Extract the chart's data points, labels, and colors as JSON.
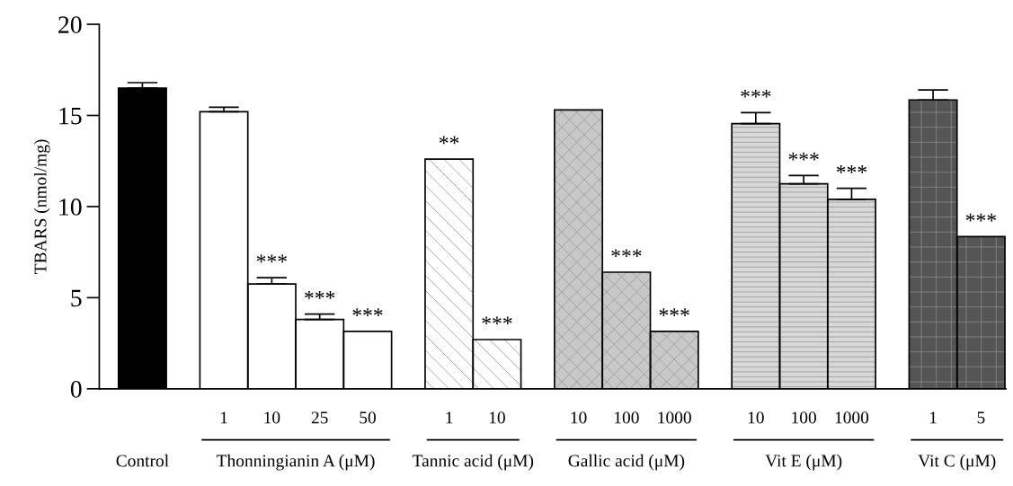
{
  "chart_data": {
    "type": "bar",
    "ylabel": "TBARS (nmol/mg)",
    "categories": [
      null,
      "1",
      "10",
      "25",
      "50",
      "1",
      "10",
      "10",
      "100",
      "1000",
      "10",
      "100",
      "1000",
      "1",
      "5"
    ],
    "annotations": [
      "Control",
      "Thonningianin A (μM)",
      "Tannic acid (μM)",
      "Gallic acid (μM)",
      "Vit E (μM)",
      "Vit C (μM)"
    ],
    "ylim": [
      0,
      20
    ],
    "yticks": [
      0,
      5,
      10,
      15,
      20
    ],
    "grid": false,
    "legend": false,
    "series": [
      {
        "color": "#000000",
        "values": [
          16.5,
          null,
          null,
          null,
          null,
          null,
          null,
          null,
          null,
          null,
          null,
          null,
          null,
          null,
          null
        ],
        "errors": [
          0.3,
          null,
          null,
          null,
          null,
          null,
          null,
          null,
          null,
          null,
          null,
          null,
          null,
          null,
          null
        ],
        "value_labels": [
          null,
          null,
          null,
          null,
          null,
          null,
          null,
          null,
          null,
          null,
          null,
          null,
          null,
          null,
          null
        ]
      },
      {
        "color": "#ffffff",
        "values": [
          null,
          15.2,
          5.75,
          3.8,
          3.15,
          null,
          null,
          null,
          null,
          null,
          null,
          null,
          null,
          null,
          null
        ],
        "errors": [
          null,
          0.25,
          0.35,
          0.3,
          null,
          null,
          null,
          null,
          null,
          null,
          null,
          null,
          null,
          null,
          null
        ],
        "value_labels": [
          null,
          null,
          "***",
          "***",
          "***",
          null,
          null,
          null,
          null,
          null,
          null,
          null,
          null,
          null,
          null
        ]
      },
      {
        "color": "#ffffff",
        "values": [
          null,
          null,
          null,
          null,
          null,
          12.6,
          2.7,
          null,
          null,
          null,
          null,
          null,
          null,
          null,
          null
        ],
        "errors": [
          null,
          null,
          null,
          null,
          null,
          null,
          null,
          null,
          null,
          null,
          null,
          null,
          null,
          null,
          null
        ],
        "value_labels": [
          null,
          null,
          null,
          null,
          null,
          "**",
          "***",
          null,
          null,
          null,
          null,
          null,
          null,
          null,
          null
        ]
      },
      {
        "color": "#c8c8c8",
        "values": [
          null,
          null,
          null,
          null,
          null,
          null,
          null,
          15.3,
          6.4,
          3.15,
          null,
          null,
          null,
          null,
          null
        ],
        "errors": [
          null,
          null,
          null,
          null,
          null,
          null,
          null,
          null,
          null,
          null,
          null,
          null,
          null,
          null,
          null
        ],
        "value_labels": [
          null,
          null,
          null,
          null,
          null,
          null,
          null,
          null,
          "***",
          "***",
          null,
          null,
          null,
          null,
          null
        ]
      },
      {
        "color": "#d8d8d8",
        "values": [
          null,
          null,
          null,
          null,
          null,
          null,
          null,
          null,
          null,
          null,
          14.55,
          11.25,
          10.4,
          null,
          null
        ],
        "errors": [
          null,
          null,
          null,
          null,
          null,
          null,
          null,
          null,
          null,
          null,
          0.6,
          0.45,
          0.6,
          null,
          null
        ],
        "value_labels": [
          null,
          null,
          null,
          null,
          null,
          null,
          null,
          null,
          null,
          null,
          "***",
          "***",
          "***",
          null,
          null
        ]
      },
      {
        "color": "#555555",
        "values": [
          null,
          null,
          null,
          null,
          null,
          null,
          null,
          null,
          null,
          null,
          null,
          null,
          null,
          15.85,
          8.35
        ],
        "errors": [
          null,
          null,
          null,
          null,
          null,
          null,
          null,
          null,
          null,
          null,
          null,
          null,
          null,
          0.55,
          null
        ],
        "value_labels": [
          null,
          null,
          null,
          null,
          null,
          null,
          null,
          null,
          null,
          null,
          null,
          null,
          null,
          null,
          "***"
        ]
      }
    ]
  }
}
